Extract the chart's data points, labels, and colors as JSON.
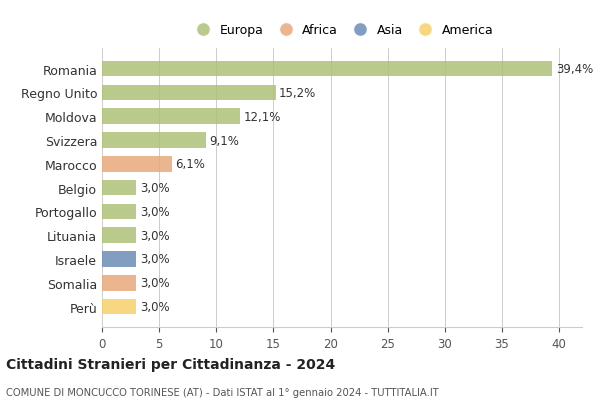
{
  "countries": [
    "Romania",
    "Regno Unito",
    "Moldova",
    "Svizzera",
    "Marocco",
    "Belgio",
    "Portogallo",
    "Lituania",
    "Israele",
    "Somalia",
    "Perù"
  ],
  "values": [
    39.4,
    15.2,
    12.1,
    9.1,
    6.1,
    3.0,
    3.0,
    3.0,
    3.0,
    3.0,
    3.0
  ],
  "labels": [
    "39,4%",
    "15,2%",
    "12,1%",
    "9,1%",
    "6,1%",
    "3,0%",
    "3,0%",
    "3,0%",
    "3,0%",
    "3,0%",
    "3,0%"
  ],
  "continents": [
    "Europa",
    "Europa",
    "Europa",
    "Europa",
    "Africa",
    "Europa",
    "Europa",
    "Europa",
    "Asia",
    "Africa",
    "America"
  ],
  "colors": {
    "Europa": "#adc178",
    "Africa": "#e8a87c",
    "Asia": "#6b8db5",
    "America": "#f6d06b"
  },
  "legend_entries": [
    "Europa",
    "Africa",
    "Asia",
    "America"
  ],
  "xlim": [
    0,
    42
  ],
  "xticks": [
    0,
    5,
    10,
    15,
    20,
    25,
    30,
    35,
    40
  ],
  "title": "Cittadini Stranieri per Cittadinanza - 2024",
  "subtitle": "COMUNE DI MONCUCCO TORINESE (AT) - Dati ISTAT al 1° gennaio 2024 - TUTTITALIA.IT",
  "bg_color": "#ffffff",
  "grid_color": "#cccccc",
  "bar_alpha": 0.85,
  "bar_height": 0.65
}
